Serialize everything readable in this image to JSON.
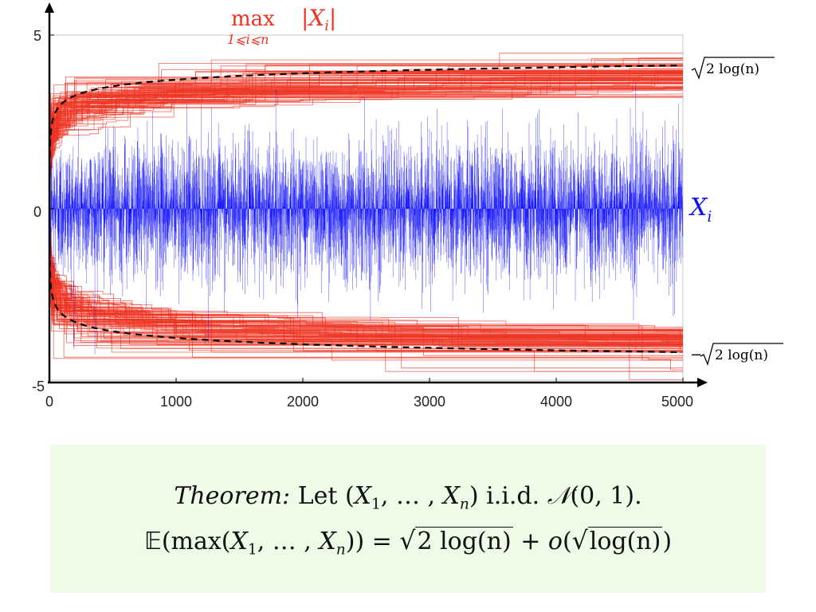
{
  "chart_data": {
    "type": "line",
    "title": "",
    "xlabel": "",
    "ylabel": "",
    "xlim": [
      0,
      5000
    ],
    "ylim": [
      -5,
      5
    ],
    "x_ticks": [
      "0",
      "1000",
      "2000",
      "3000",
      "4000",
      "5000"
    ],
    "y_ticks": [
      "5",
      "0",
      "-5"
    ],
    "grid": false,
    "series": [
      {
        "name": "X_i",
        "color": "#0000ff",
        "description_values": {
          "n": 5000,
          "distribution": "N(0,1)"
        }
      },
      {
        "name": "max |X_i|",
        "color": "#ee3322",
        "description_values": {
          "count": 100,
          "upper_range": [
            3.3,
            4.5
          ],
          "lower_range": [
            -4.5,
            -3.3
          ]
        }
      },
      {
        "name": "sqrt(2 log(n))",
        "color": "#000000",
        "style": "dashed",
        "x": [
          5,
          10,
          50,
          100,
          500,
          1000,
          2000,
          3000,
          4000,
          5000
        ],
        "y": [
          1.79,
          2.15,
          2.8,
          3.03,
          3.53,
          3.72,
          3.9,
          4.0,
          4.07,
          4.13
        ]
      },
      {
        "name": "-sqrt(2 log(n))",
        "color": "#000000",
        "style": "dashed",
        "x": [
          5,
          10,
          50,
          100,
          500,
          1000,
          2000,
          3000,
          4000,
          5000
        ],
        "y": [
          -1.79,
          -2.15,
          -2.8,
          -3.03,
          -3.53,
          -3.72,
          -3.9,
          -4.0,
          -4.07,
          -4.13
        ]
      }
    ],
    "annotations": {
      "max_label": "max",
      "max_abs": "|X",
      "max_abs_sub": "i",
      "max_abs_close": "|",
      "max_sub": "1⩽i⩽n",
      "xi_label": "X",
      "xi_sub": "i",
      "upper_curve_label": "2 log(n)",
      "lower_curve_sign": "−",
      "lower_curve_label": "2 log(n)"
    }
  },
  "theorem": {
    "label": "Theorem:",
    "line1_text": "Let (",
    "line1_x": "X",
    "line1_sub1": "1",
    "line1_mid": ", … , ",
    "line1_subn": "n",
    "line1_after": ") i.i.d. ",
    "line1_normal": "𝒩",
    "line1_params": "(0, 1).",
    "line2_E": "𝔼",
    "line2_open": "(max(",
    "line2_close": ")) = ",
    "line2_sqrt1": "2 log(n)",
    "line2_plus": " + ",
    "line2_o": "o",
    "line2_sqrt2": "log(n)",
    "line2_end": ")"
  }
}
